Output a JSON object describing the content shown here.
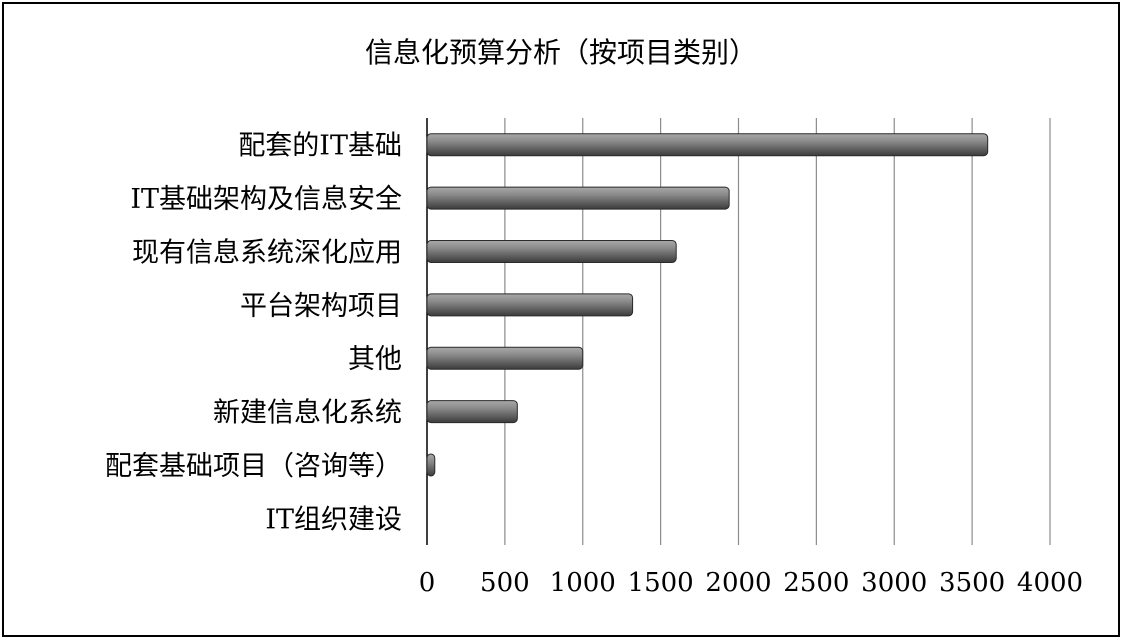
{
  "chart_data": {
    "type": "bar",
    "orientation": "horizontal",
    "title": "信息化预算分析（按项目类别）",
    "categories": [
      "配套的IT基础",
      "IT基础架构及信息安全",
      "现有信息系统深化应用",
      "平台架构项目",
      "其他",
      "新建信息化系统",
      "配套基础项目（咨询等）",
      "IT组织建设"
    ],
    "values": [
      3600,
      1940,
      1600,
      1320,
      1000,
      580,
      50,
      0
    ],
    "xlim": [
      0,
      4000
    ],
    "xticks": [
      "0",
      "500",
      "1000",
      "1500",
      "2000",
      "2500",
      "3000",
      "3500",
      "4000"
    ],
    "grid": "vertical",
    "bar_color": "#6e6e6e",
    "legend": "none"
  }
}
